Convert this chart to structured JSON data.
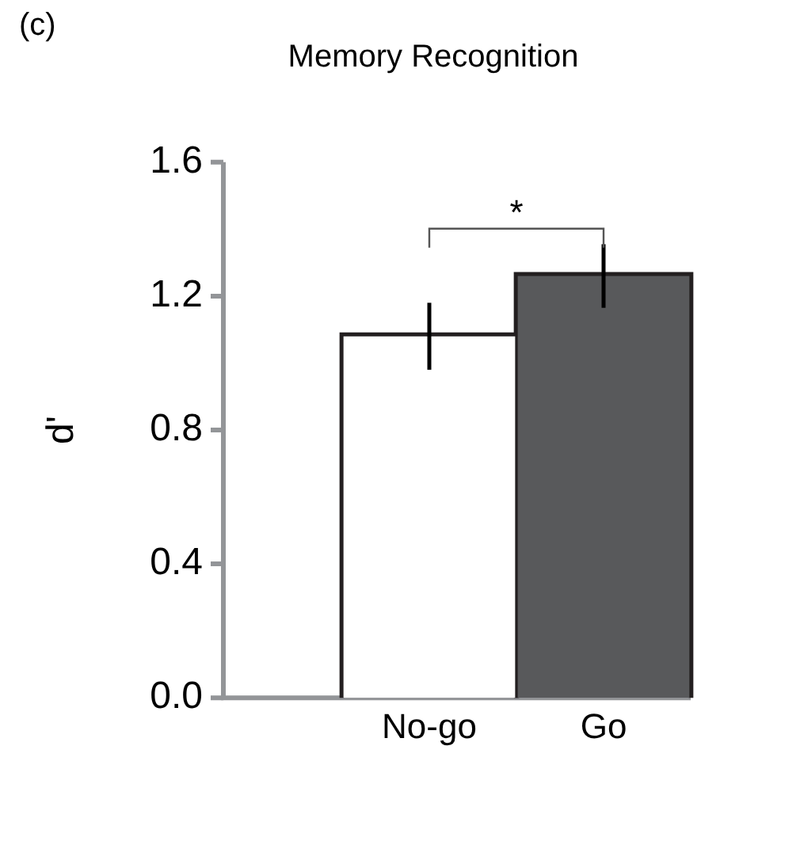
{
  "chart_data": {
    "type": "bar",
    "title": "Memory Recognition",
    "ylabel": "d'",
    "annotations": [
      "(c)",
      "*"
    ],
    "categories": [
      "No-go",
      "Go"
    ],
    "values": [
      1.08,
      1.26
    ],
    "errors": [
      0.1,
      0.095
    ],
    "colors": [
      "#ffffff",
      "#58595b"
    ],
    "ylim": [
      0,
      1.6
    ],
    "yticks": [
      {
        "value": 0,
        "label": "0.0"
      },
      {
        "value": 0.4,
        "label": "0.4"
      },
      {
        "value": 0.8,
        "label": "0.8"
      },
      {
        "value": 1.2,
        "label": "1.2"
      },
      {
        "value": 1.6,
        "label": "1.6"
      }
    ],
    "grid": false,
    "legend": false
  }
}
